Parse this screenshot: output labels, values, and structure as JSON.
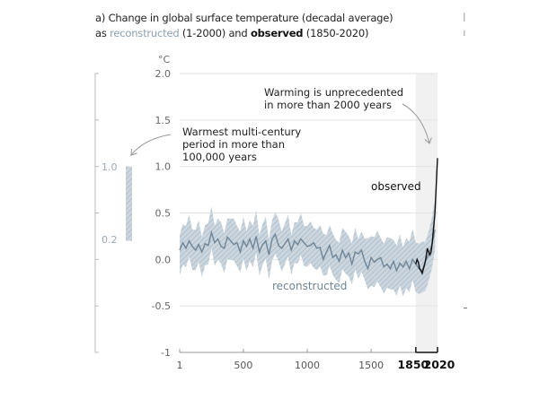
{
  "title": {
    "line1": "a) Change in global surface temperature (decadal average)",
    "line2_prefix": "as ",
    "line2_reconstructed": "reconstructed",
    "line2_mid": " (1-2000) and ",
    "line2_observed": "observed",
    "line2_suffix": " (1850-2020)"
  },
  "chart_data": {
    "type": "line",
    "title": "a) Change in global surface temperature (decadal average) as reconstructed (1-2000) and observed (1850-2020)",
    "ylabel": "°C",
    "xlabel": "",
    "ylim": [
      -1,
      2
    ],
    "xlim": [
      1,
      2020
    ],
    "y_ticks": [
      "2.0",
      "1.5",
      "1.0",
      "0.5",
      "0.0",
      "-0.5",
      "-1"
    ],
    "y_tick_values": [
      2,
      1.5,
      1,
      0.5,
      0,
      -0.5,
      -1
    ],
    "x_ticks": [
      "1",
      "500",
      "1000",
      "1500"
    ],
    "x_tick_values": [
      1,
      500,
      1000,
      1500
    ],
    "x_ticks_bold": [
      "1850",
      "2020"
    ],
    "x_ticks_bold_values": [
      1850,
      2020
    ],
    "grid": true,
    "highlight_period": [
      1850,
      2020
    ],
    "series": [
      {
        "name": "reconstructed",
        "label": "reconstructed",
        "color": "#6f8596",
        "band_color": "#b7c5d1",
        "x": [
          1,
          25,
          50,
          75,
          100,
          125,
          150,
          175,
          200,
          225,
          250,
          275,
          300,
          325,
          350,
          375,
          400,
          425,
          450,
          475,
          500,
          525,
          550,
          575,
          600,
          625,
          650,
          675,
          700,
          725,
          750,
          775,
          800,
          825,
          850,
          875,
          900,
          925,
          950,
          975,
          1000,
          1025,
          1050,
          1075,
          1100,
          1125,
          1150,
          1175,
          1200,
          1225,
          1250,
          1275,
          1300,
          1325,
          1350,
          1375,
          1400,
          1425,
          1450,
          1475,
          1500,
          1525,
          1550,
          1575,
          1600,
          1625,
          1650,
          1675,
          1700,
          1725,
          1750,
          1775,
          1800,
          1825,
          1850,
          1875,
          1900,
          1925,
          1950,
          1975,
          2000
        ],
        "values": [
          0.1,
          0.18,
          0.12,
          0.2,
          0.14,
          0.1,
          0.16,
          0.08,
          0.17,
          0.15,
          0.29,
          0.18,
          0.22,
          0.14,
          0.12,
          0.24,
          0.2,
          0.16,
          0.18,
          0.08,
          0.2,
          0.14,
          0.22,
          0.12,
          0.25,
          0.08,
          0.16,
          0.2,
          0.05,
          0.22,
          0.27,
          0.15,
          0.12,
          0.17,
          0.22,
          0.1,
          0.2,
          0.16,
          0.22,
          0.18,
          0.14,
          0.15,
          0.18,
          0.12,
          0.13,
          0.0,
          0.08,
          0.15,
          0.02,
          0.05,
          -0.02,
          0.1,
          0.02,
          0.07,
          -0.05,
          0.08,
          0.06,
          0.1,
          -0.02,
          -0.1,
          0.02,
          -0.03,
          0.0,
          0.02,
          -0.08,
          -0.05,
          -0.1,
          -0.02,
          -0.12,
          -0.04,
          -0.08,
          -0.02,
          -0.1,
          0.0,
          -0.05,
          -0.1,
          -0.12,
          -0.02,
          0.05,
          0.15,
          0.32
        ],
        "uncertainty": [
          {
            "from": 1,
            "to": 1450,
            "halfwidth": 0.22
          },
          {
            "from": 1450,
            "to": 2000,
            "halfwidth": 0.27
          }
        ]
      },
      {
        "name": "observed",
        "label": "observed",
        "color": "#111111",
        "x": [
          1850,
          1860,
          1870,
          1880,
          1890,
          1900,
          1910,
          1920,
          1930,
          1940,
          1950,
          1960,
          1970,
          1980,
          1990,
          2000,
          2010,
          2020
        ],
        "values": [
          -0.05,
          0.0,
          -0.03,
          -0.1,
          -0.12,
          -0.15,
          -0.1,
          -0.05,
          0.02,
          0.12,
          0.08,
          0.05,
          0.08,
          0.2,
          0.35,
          0.5,
          0.8,
          1.09
        ]
      }
    ],
    "side_bar": {
      "label_top": "1.0",
      "label_bottom": "0.2",
      "range": [
        0.2,
        1.0
      ]
    },
    "annotations": [
      {
        "id": "unprecedented",
        "lines": [
          "Warming is unprecedented",
          "in more than 2000 years"
        ]
      },
      {
        "id": "multicentury",
        "lines": [
          "Warmest multi-century",
          "period in more than",
          "100,000 years"
        ]
      }
    ]
  }
}
